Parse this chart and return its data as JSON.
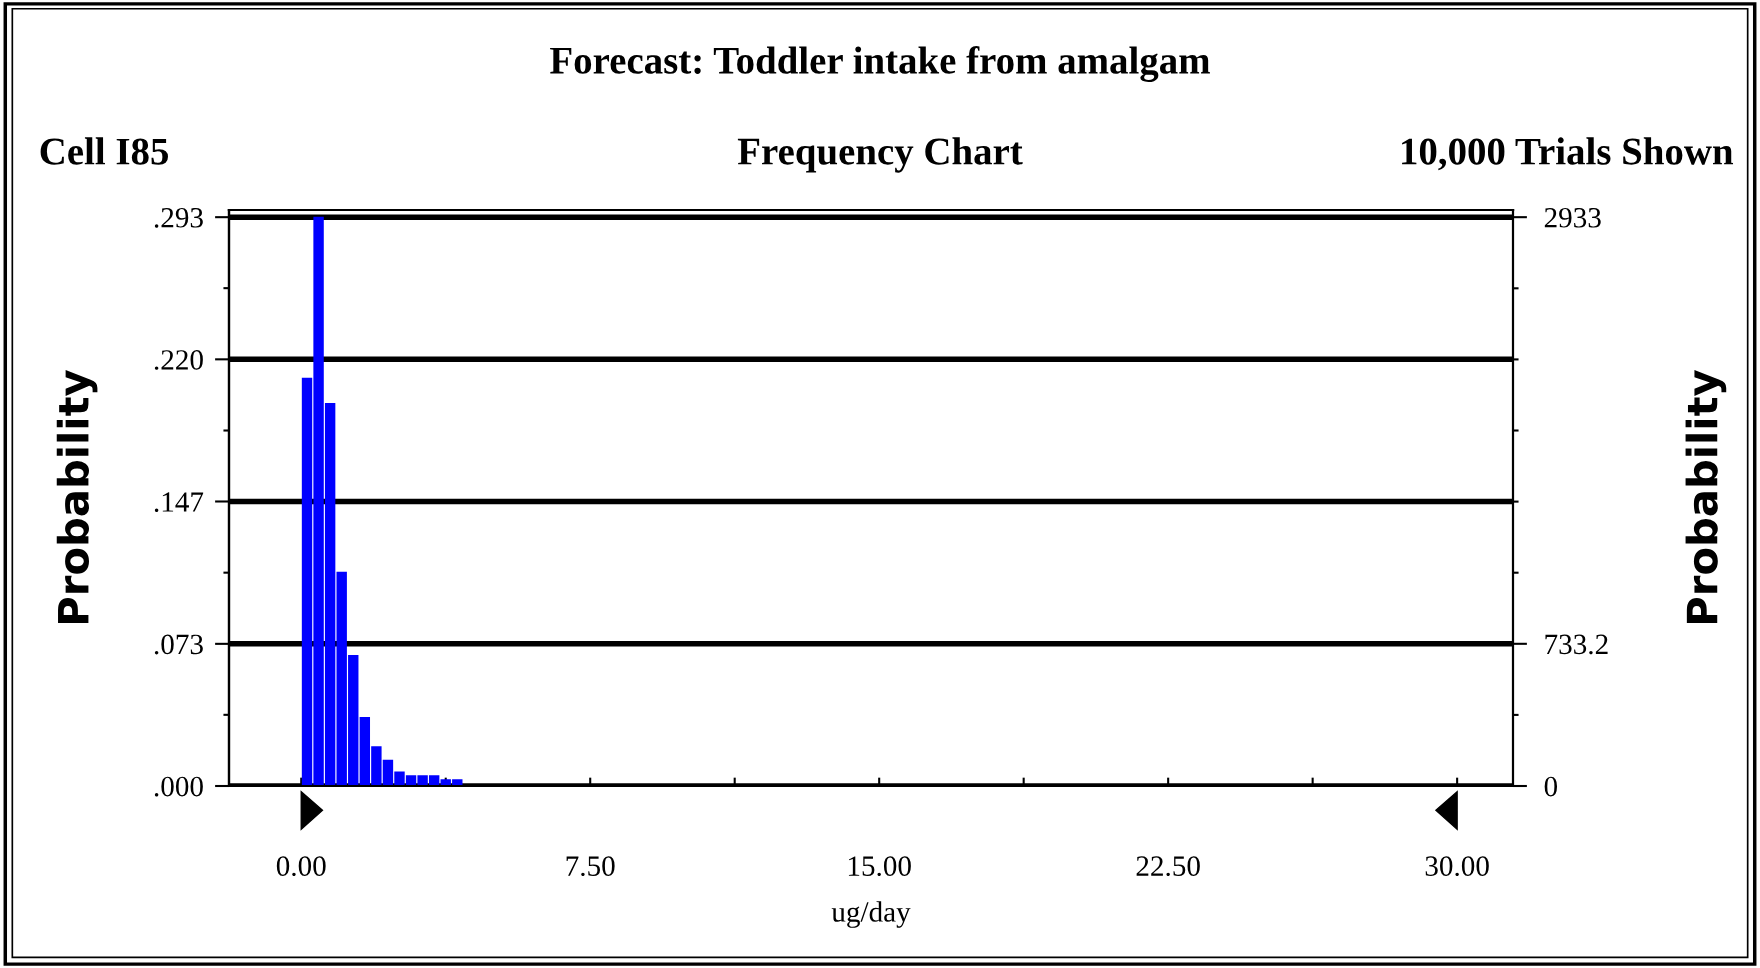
{
  "chart_data": {
    "type": "histogram",
    "title": "Forecast: Toddler intake from amalgam",
    "subtitle": "Frequency Chart",
    "annotations": [
      "Cell I85",
      "10,000 Trials Shown"
    ],
    "xlabel": "ug/day",
    "ylabel": "Probability",
    "y2label": "Probability",
    "bins": [
      0.0,
      0.3,
      0.6,
      0.9,
      1.2,
      1.5,
      1.8,
      2.1,
      2.4,
      2.7,
      3.0,
      3.3,
      3.6,
      3.9,
      4.2,
      4.5,
      4.8,
      5.1,
      5.4,
      5.7,
      6.0,
      6.3,
      6.6,
      6.9,
      7.2,
      7.5,
      7.8,
      8.1,
      8.4,
      8.7,
      9.0,
      9.3,
      9.6,
      9.9,
      10.2,
      10.5,
      10.8,
      11.1,
      11.4,
      11.7,
      12.0,
      12.3,
      12.6,
      12.9,
      13.2,
      13.5,
      13.8,
      14.1,
      14.4,
      14.7,
      15.0,
      15.3,
      15.6,
      15.9,
      16.2,
      16.5,
      16.8,
      17.1,
      17.4,
      17.7,
      18.0,
      18.3,
      18.6,
      18.9,
      19.2,
      19.5,
      19.8,
      20.1,
      20.4,
      20.7,
      21.0,
      21.3,
      21.6,
      21.9,
      22.2,
      22.5,
      22.8,
      23.1,
      23.4,
      23.7,
      24.0,
      24.3,
      24.6,
      24.9,
      25.2,
      25.5,
      25.8,
      26.1,
      26.4,
      26.7,
      27.0,
      27.3,
      27.6,
      27.9,
      28.2,
      28.5,
      28.8,
      29.1,
      29.4,
      29.7,
      30.0
    ],
    "values": [
      0.21,
      0.293,
      0.197,
      0.11,
      0.067,
      0.035,
      0.02,
      0.013,
      0.007,
      0.005,
      0.005,
      0.005,
      0.003,
      0.003,
      0,
      0,
      0,
      0,
      0,
      0,
      0,
      0,
      0,
      0,
      0,
      0,
      0,
      0,
      0,
      0,
      0,
      0,
      0,
      0,
      0,
      0,
      0,
      0,
      0,
      0,
      0,
      0,
      0,
      0,
      0,
      0,
      0,
      0,
      0,
      0,
      0,
      0,
      0,
      0,
      0,
      0,
      0,
      0,
      0,
      0,
      0,
      0,
      0,
      0,
      0,
      0,
      0,
      0,
      0,
      0,
      0,
      0,
      0,
      0,
      0,
      0,
      0,
      0,
      0,
      0,
      0,
      0,
      0,
      0,
      0,
      0,
      0,
      0,
      0,
      0,
      0,
      0,
      0,
      0,
      0,
      0,
      0,
      0,
      0,
      0
    ],
    "color": "#0000ff",
    "xlim": [
      -1.875,
      31.45
    ],
    "xticks": [
      {
        "value": 0,
        "label": "0.00"
      },
      {
        "value": 3.75,
        "label": null
      },
      {
        "value": 7.5,
        "label": "7.50"
      },
      {
        "value": 11.25,
        "label": null
      },
      {
        "value": 15,
        "label": "15.00"
      },
      {
        "value": 18.75,
        "label": null
      },
      {
        "value": 22.5,
        "label": "22.50"
      },
      {
        "value": 26.25,
        "label": null
      },
      {
        "value": 30,
        "label": "30.00"
      }
    ],
    "ylim": [
      0,
      0.297
    ],
    "yticks": [
      {
        "value": 0,
        "label": ".000"
      },
      {
        "value": 0.0367,
        "label": null
      },
      {
        "value": 0.0733,
        "label": ".073"
      },
      {
        "value": 0.11,
        "label": null
      },
      {
        "value": 0.1467,
        "label": ".147"
      },
      {
        "value": 0.1833,
        "label": null
      },
      {
        "value": 0.22,
        "label": ".220"
      },
      {
        "value": 0.2567,
        "label": null
      },
      {
        "value": 0.2933,
        "label": ".293"
      }
    ],
    "y2lim": [
      0,
      2970
    ],
    "y2ticks": [
      0,
      {
        "value": 366.6,
        "label": null
      },
      733.2,
      {
        "value": 1099.8,
        "label": null
      },
      {
        "value": 1466.4,
        "label": null
      },
      {
        "value": 1833,
        "label": null
      },
      {
        "value": 2199.6,
        "label": null
      },
      {
        "value": 2566.2,
        "label": null
      },
      2933
    ],
    "grid": "y",
    "legend": false
  }
}
